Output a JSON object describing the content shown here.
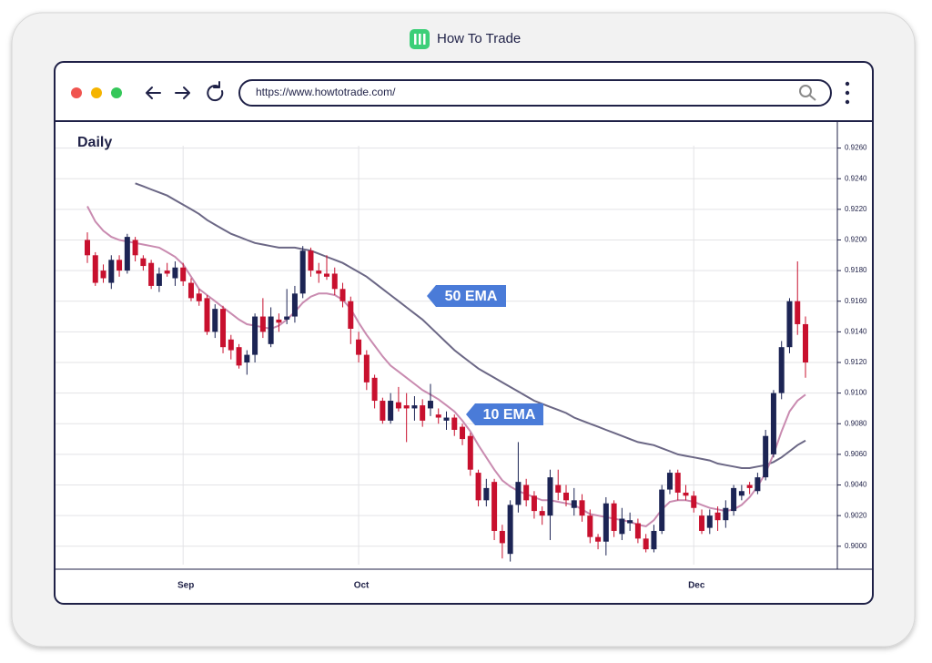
{
  "header": {
    "brand": "How To Trade"
  },
  "browser": {
    "url": "https://www.howtotrade.com/"
  },
  "chart_data": {
    "type": "candlestick",
    "title": "Daily",
    "categories": [
      null,
      null,
      null,
      null,
      null,
      null,
      null,
      null,
      null,
      null,
      null,
      null,
      "Sep",
      null,
      null,
      null,
      null,
      null,
      null,
      null,
      null,
      null,
      null,
      null,
      null,
      null,
      null,
      null,
      null,
      null,
      null,
      null,
      null,
      null,
      "Oct",
      null,
      null,
      null,
      null,
      null,
      null,
      null,
      null,
      null,
      null,
      null,
      null,
      null,
      null,
      null,
      null,
      null,
      null,
      null,
      null,
      null,
      null,
      null,
      null,
      null,
      null,
      null,
      null,
      null,
      null,
      null,
      null,
      null,
      null,
      null,
      null,
      null,
      null,
      null,
      null,
      null,
      "Dec",
      null,
      null,
      null,
      null,
      null,
      null,
      null,
      null,
      null,
      null,
      null,
      null,
      null,
      null
    ],
    "open": [
      0.92,
      0.919,
      0.918,
      0.9172,
      0.9187,
      0.918,
      0.92,
      0.9188,
      0.9185,
      0.917,
      0.918,
      0.9175,
      0.9182,
      0.9172,
      0.9165,
      0.9162,
      0.914,
      0.9155,
      0.9135,
      0.913,
      0.912,
      0.9125,
      0.915,
      0.9132,
      0.9148,
      0.9148,
      0.915,
      0.9165,
      0.9193,
      0.918,
      0.9178,
      0.9178,
      0.9168,
      0.916,
      0.9135,
      0.9125,
      0.911,
      0.9095,
      0.9082,
      0.9094,
      0.9092,
      0.909,
      0.9092,
      0.909,
      0.9086,
      0.9082,
      0.9084,
      0.9078,
      0.9072,
      0.9048,
      0.903,
      0.9042,
      0.901,
      0.8995,
      0.9027,
      0.904,
      0.9033,
      0.9023,
      0.902,
      0.904,
      0.9035,
      0.9025,
      0.903,
      0.902,
      0.9006,
      0.9003,
      0.9028,
      0.9008,
      0.9015,
      0.9015,
      0.9005,
      0.8998,
      0.901,
      0.9037,
      0.9048,
      0.9035,
      0.9033,
      0.902,
      0.9012,
      0.9022,
      0.9017,
      0.9023,
      0.9033,
      0.904,
      0.9036,
      0.9045,
      0.906,
      0.91,
      0.913,
      0.916,
      0.9145
    ],
    "high": [
      0.9205,
      0.9192,
      0.9184,
      0.919,
      0.919,
      0.9204,
      0.9202,
      0.919,
      0.9187,
      0.9182,
      0.9185,
      0.9186,
      0.9185,
      0.9175,
      0.9168,
      0.9164,
      0.9158,
      0.9157,
      0.9138,
      0.9132,
      0.9128,
      0.9152,
      0.9162,
      0.9156,
      0.9152,
      0.9168,
      0.917,
      0.9196,
      0.9195,
      0.9185,
      0.919,
      0.9182,
      0.9172,
      0.9163,
      0.914,
      0.9128,
      0.9112,
      0.9097,
      0.91,
      0.9104,
      0.91,
      0.9098,
      0.9096,
      0.9106,
      0.909,
      0.9088,
      0.9086,
      0.908,
      0.9074,
      0.905,
      0.9044,
      0.9044,
      0.9014,
      0.903,
      0.9068,
      0.9044,
      0.9036,
      0.9026,
      0.905,
      0.905,
      0.904,
      0.9038,
      0.9034,
      0.9024,
      0.9008,
      0.9032,
      0.903,
      0.9025,
      0.9022,
      0.9018,
      0.9008,
      0.9014,
      0.904,
      0.905,
      0.905,
      0.904,
      0.9036,
      0.9024,
      0.9024,
      0.9026,
      0.903,
      0.904,
      0.904,
      0.9042,
      0.9048,
      0.9076,
      0.9102,
      0.9134,
      0.9162,
      0.9186,
      0.915
    ],
    "low": [
      0.9185,
      0.917,
      0.9172,
      0.9168,
      0.9176,
      0.9178,
      0.9186,
      0.918,
      0.9168,
      0.9166,
      0.9176,
      0.917,
      0.917,
      0.916,
      0.9157,
      0.9138,
      0.9136,
      0.9126,
      0.9122,
      0.9116,
      0.9112,
      0.912,
      0.9136,
      0.913,
      0.914,
      0.9145,
      0.9146,
      0.9162,
      0.9176,
      0.9172,
      0.9174,
      0.9164,
      0.9156,
      0.9132,
      0.912,
      0.9102,
      0.909,
      0.908,
      0.908,
      0.9088,
      0.9068,
      0.9082,
      0.9078,
      0.9085,
      0.908,
      0.9076,
      0.9072,
      0.9066,
      0.9046,
      0.9026,
      0.9026,
      0.9004,
      0.8992,
      0.899,
      0.9022,
      0.9026,
      0.9018,
      0.9014,
      0.9004,
      0.903,
      0.9026,
      0.902,
      0.9016,
      0.9002,
      0.8998,
      0.8994,
      0.9006,
      0.9004,
      0.901,
      0.9002,
      0.8996,
      0.8996,
      0.9008,
      0.9034,
      0.903,
      0.903,
      0.9022,
      0.9008,
      0.9008,
      0.901,
      0.9012,
      0.902,
      0.903,
      0.9034,
      0.9034,
      0.9043,
      0.9058,
      0.9096,
      0.9126,
      0.9138,
      0.911
    ],
    "close": [
      0.919,
      0.9172,
      0.9175,
      0.9187,
      0.918,
      0.9202,
      0.919,
      0.9183,
      0.917,
      0.9178,
      0.9178,
      0.9182,
      0.9173,
      0.9162,
      0.916,
      0.914,
      0.9155,
      0.913,
      0.9128,
      0.9118,
      0.9125,
      0.915,
      0.914,
      0.915,
      0.9146,
      0.915,
      0.9165,
      0.9193,
      0.918,
      0.9178,
      0.9176,
      0.9168,
      0.916,
      0.9142,
      0.9125,
      0.9107,
      0.9095,
      0.9082,
      0.9095,
      0.909,
      0.909,
      0.9092,
      0.9082,
      0.9095,
      0.9084,
      0.9084,
      0.9076,
      0.907,
      0.905,
      0.903,
      0.9038,
      0.901,
      0.9002,
      0.9027,
      0.9042,
      0.903,
      0.9023,
      0.902,
      0.9045,
      0.9035,
      0.903,
      0.903,
      0.902,
      0.9006,
      0.9003,
      0.9028,
      0.901,
      0.9018,
      0.9017,
      0.9005,
      0.8998,
      0.901,
      0.9037,
      0.9048,
      0.9035,
      0.9033,
      0.9025,
      0.901,
      0.902,
      0.9017,
      0.9025,
      0.9038,
      0.9036,
      0.9038,
      0.9045,
      0.9072,
      0.91,
      0.913,
      0.916,
      0.9145,
      0.912
    ],
    "up_color": "#1c2454",
    "down_color": "#c8102e",
    "series": [
      {
        "name": "50 EMA",
        "color": "#6b6785",
        "values": [
          null,
          null,
          null,
          null,
          null,
          null,
          0.9237,
          0.9235,
          0.9233,
          0.9231,
          0.9229,
          0.9226,
          0.9223,
          0.922,
          0.9217,
          0.9213,
          0.921,
          0.9207,
          0.9204,
          0.9202,
          0.92,
          0.9198,
          0.9197,
          0.9196,
          0.9195,
          0.9195,
          0.9195,
          0.9194,
          0.9193,
          0.9191,
          0.9189,
          0.9187,
          0.9185,
          0.9182,
          0.9179,
          0.9176,
          0.9172,
          0.9168,
          0.9164,
          0.916,
          0.9156,
          0.9152,
          0.9148,
          0.9143,
          0.9138,
          0.9133,
          0.9128,
          0.9124,
          0.912,
          0.9116,
          0.9113,
          0.911,
          0.9107,
          0.9104,
          0.9101,
          0.9098,
          0.9095,
          0.9093,
          0.9091,
          0.9089,
          0.9087,
          0.9084,
          0.9082,
          0.908,
          0.9078,
          0.9076,
          0.9074,
          0.9072,
          0.907,
          0.9068,
          0.9067,
          0.9066,
          0.9064,
          0.9062,
          0.906,
          0.9059,
          0.9058,
          0.9057,
          0.9056,
          0.9054,
          0.9053,
          0.9052,
          0.9051,
          0.9051,
          0.9052,
          0.9053,
          0.9055,
          0.9058,
          0.9062,
          0.9066,
          0.9069
        ]
      },
      {
        "name": "10 EMA",
        "color": "#c98bb0",
        "values": [
          0.9222,
          0.9212,
          0.9206,
          0.9202,
          0.92,
          0.9199,
          0.9198,
          0.9197,
          0.9196,
          0.9195,
          0.9192,
          0.9189,
          0.9184,
          0.9176,
          0.9168,
          0.9164,
          0.916,
          0.9156,
          0.9152,
          0.9148,
          0.9145,
          0.9144,
          0.9143,
          0.9142,
          0.9144,
          0.9148,
          0.9153,
          0.9159,
          0.9163,
          0.9165,
          0.9165,
          0.9164,
          0.9161,
          0.9155,
          0.9146,
          0.9138,
          0.9131,
          0.9124,
          0.9118,
          0.9114,
          0.911,
          0.9106,
          0.9102,
          0.9099,
          0.9096,
          0.9092,
          0.9088,
          0.9082,
          0.9075,
          0.9066,
          0.9058,
          0.905,
          0.9043,
          0.9039,
          0.9036,
          0.9034,
          0.9032,
          0.903,
          0.903,
          0.9029,
          0.9028,
          0.9027,
          0.9024,
          0.9021,
          0.902,
          0.9019,
          0.9018,
          0.9017,
          0.9016,
          0.9014,
          0.9013,
          0.9017,
          0.9024,
          0.9029,
          0.903,
          0.903,
          0.9029,
          0.9027,
          0.9025,
          0.9024,
          0.9023,
          0.9024,
          0.9027,
          0.9032,
          0.9039,
          0.9048,
          0.906,
          0.9075,
          0.9088,
          0.9095,
          0.9099
        ]
      }
    ],
    "ylim": [
      0.8985,
      0.9277
    ],
    "yticks": [
      {
        "value": 0.9,
        "label": "0.9000"
      },
      {
        "value": 0.902,
        "label": "0.9020"
      },
      {
        "value": 0.904,
        "label": "0.9040"
      },
      {
        "value": 0.906,
        "label": "0.9060"
      },
      {
        "value": 0.908,
        "label": "0.9080"
      },
      {
        "value": 0.91,
        "label": "0.9100"
      },
      {
        "value": 0.912,
        "label": "0.9120"
      },
      {
        "value": 0.914,
        "label": "0.9140"
      },
      {
        "value": 0.916,
        "label": "0.9160"
      },
      {
        "value": 0.918,
        "label": "0.9180"
      },
      {
        "value": 0.92,
        "label": "0.9200"
      },
      {
        "value": 0.922,
        "label": "0.9220"
      },
      {
        "value": 0.924,
        "label": "0.9240"
      },
      {
        "value": 0.926,
        "label": "0.9260"
      }
    ],
    "grid": true
  }
}
